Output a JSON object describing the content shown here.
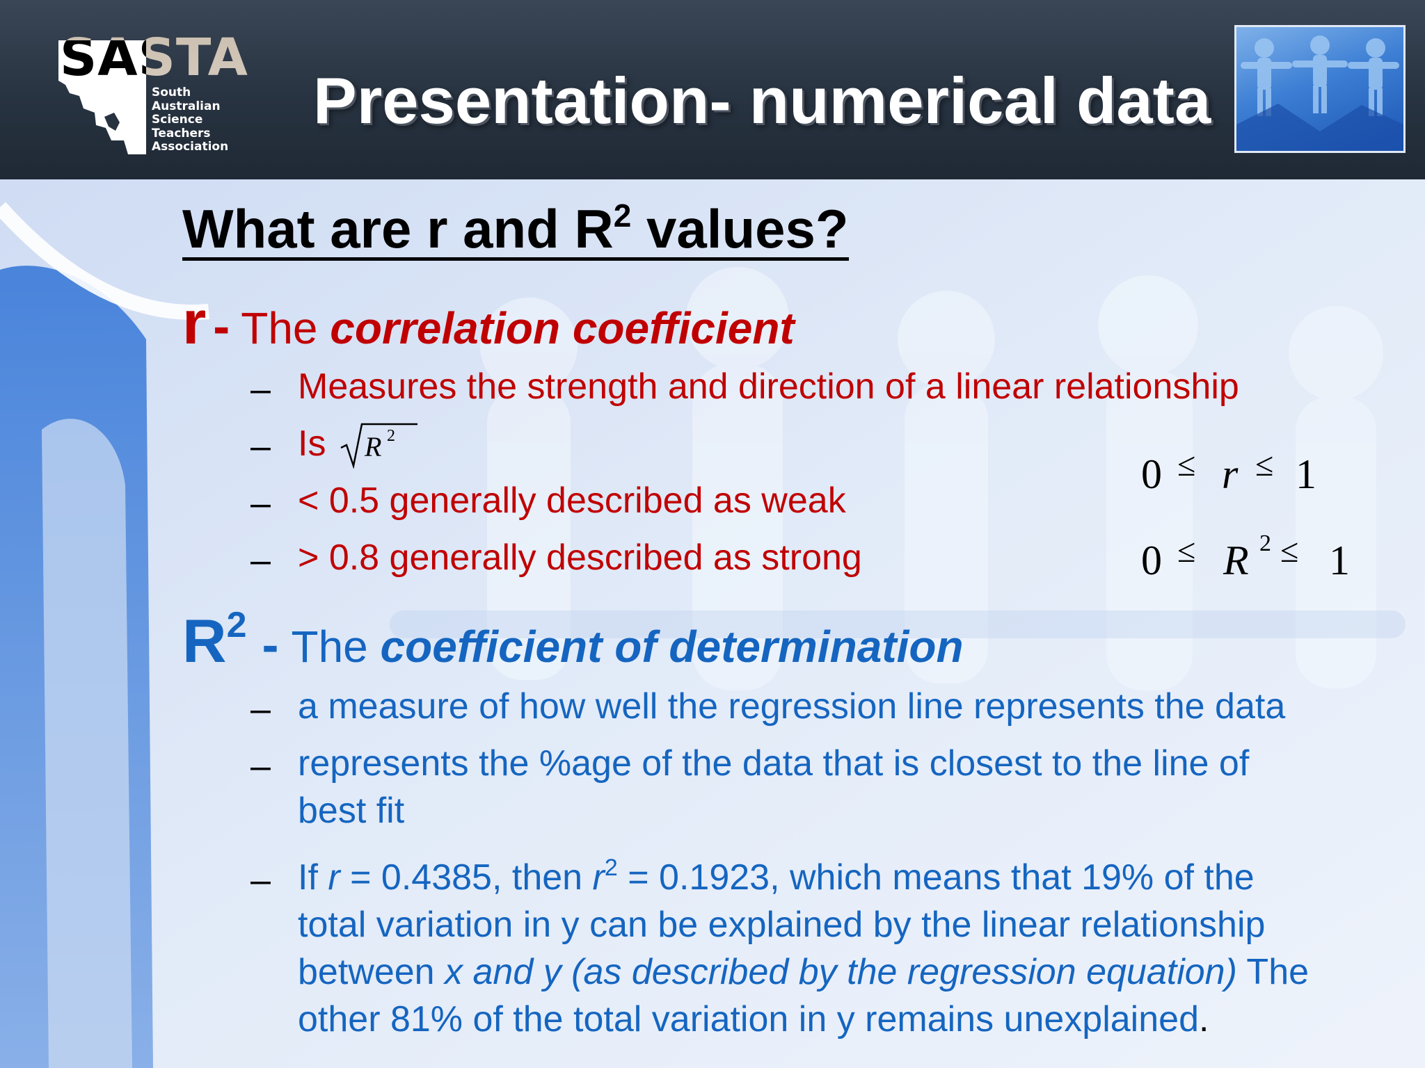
{
  "header": {
    "title": "Presentation- numerical data",
    "logo": {
      "wordmark": "SASTA",
      "subtitle_lines": [
        "South",
        "Australian",
        "Science",
        "Teachers",
        "Association"
      ]
    }
  },
  "content": {
    "heading_main": "What are r and R",
    "heading_sup": "2",
    "heading_tail": " values?",
    "r_section": {
      "symbol": "r",
      "dash": "-",
      "lead": "The ",
      "term": "correlation coefficient",
      "bullets": [
        "Measures the strength and direction of a linear relationship",
        "Is",
        "< 0.5 generally described as weak",
        "> 0.8 generally described as strong"
      ],
      "sqrt_expression": {
        "base": "R",
        "exponent": "2"
      },
      "inequality_r": {
        "left": "0",
        "op1": "≤",
        "var": "r",
        "op2": "≤",
        "right": "1"
      },
      "inequality_R2": {
        "left": "0",
        "op1": "≤",
        "var": "R",
        "exp": "2",
        "op2": "≤",
        "right": "1"
      }
    },
    "r2_section": {
      "symbol": "R",
      "symbol_sup": "2",
      "dash": "-",
      "lead": "The ",
      "term": "coefficient of determination",
      "bullets": [
        "a measure of how well the regression line represents the data",
        "represents the %age of the data that is closest to the line of",
        "best fit"
      ],
      "example": {
        "p1": " If ",
        "r1": "r",
        "p2": " = 0.4385, then ",
        "r2": "r",
        "sup": "2",
        "p3": " = 0.1923, which means that 19% of the",
        "line2": "total variation in y can be explained by the linear relationship",
        "line3a": "between ",
        "line3b": "x and y (as described by the regression equation)",
        "line3c": " The",
        "line4a": "other 81% of the total variation in y remains unexplained",
        "line4b": "."
      }
    },
    "dash_glyph": "–"
  },
  "colors": {
    "header_bg": "#283341",
    "title_text": "#ffffff",
    "r_red": "#c00000",
    "r2_blue": "#1565c0",
    "body_bg": "#dfe9f7"
  }
}
